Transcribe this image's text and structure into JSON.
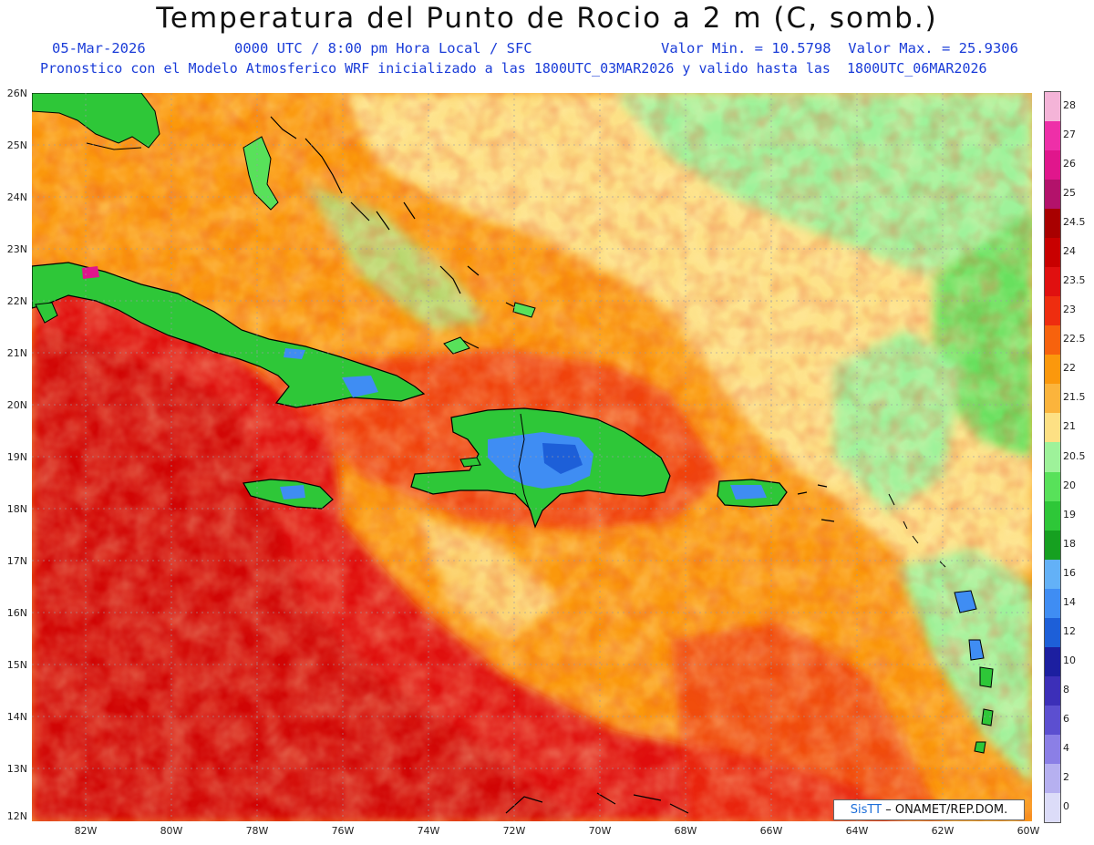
{
  "title": "Temperatura del Punto de Rocio a 2 m (C, somb.)",
  "info_line1": {
    "date": "05-Mar-2026",
    "time": "0000 UTC / 8:00 pm Hora Local / SFC",
    "minmax": "Valor Min. = 10.5798  Valor Max. = 25.9306"
  },
  "info_line2": "Pronostico con el Modelo Atmosferico WRF inicializado a las 1800UTC_03MAR2026 y valido hasta las  1800UTC_06MAR2026",
  "latitude_labels": [
    "26N",
    "25N",
    "24N",
    "23N",
    "22N",
    "21N",
    "20N",
    "19N",
    "18N",
    "17N",
    "16N",
    "15N",
    "14N",
    "13N",
    "12N"
  ],
  "longitude_labels": [
    "82W",
    "80W",
    "78W",
    "76W",
    "74W",
    "72W",
    "70W",
    "68W",
    "66W",
    "64W",
    "62W",
    "60W"
  ],
  "colorbar": {
    "levels": [
      "28",
      "27",
      "26",
      "25",
      "24.5",
      "24",
      "23.5",
      "23",
      "22.5",
      "22",
      "21.5",
      "21",
      "20.5",
      "20",
      "19",
      "18",
      "16",
      "14",
      "12",
      "10",
      "8",
      "6",
      "4",
      "2",
      "0"
    ],
    "colors": [
      "#f4b4d8",
      "#ee2fa8",
      "#e0168c",
      "#b3126b",
      "#a80000",
      "#c80000",
      "#e01010",
      "#ee2d0f",
      "#f7620d",
      "#fb980c",
      "#fbb43c",
      "#fde084",
      "#9ef29a",
      "#58e15a",
      "#2ec738",
      "#16a020",
      "#63b1f7",
      "#3f8df3",
      "#1d5fd8",
      "#1c1fa0",
      "#3c2fb8",
      "#5c4fd0",
      "#8b7fe6",
      "#b6b0f0",
      "#dcdcf8"
    ]
  },
  "credit": {
    "logo": "SisTT",
    "text": "– ONAMET/REP.DOM."
  },
  "map_colors": {
    "ocean_warm": "#fb980c",
    "ocean_hot": "#e01010",
    "moist_cool": "#fde084",
    "land_green": "#2ec738",
    "land_blue": "#3f8df3",
    "grid": "#9a9aa8",
    "coast": "#000000"
  }
}
